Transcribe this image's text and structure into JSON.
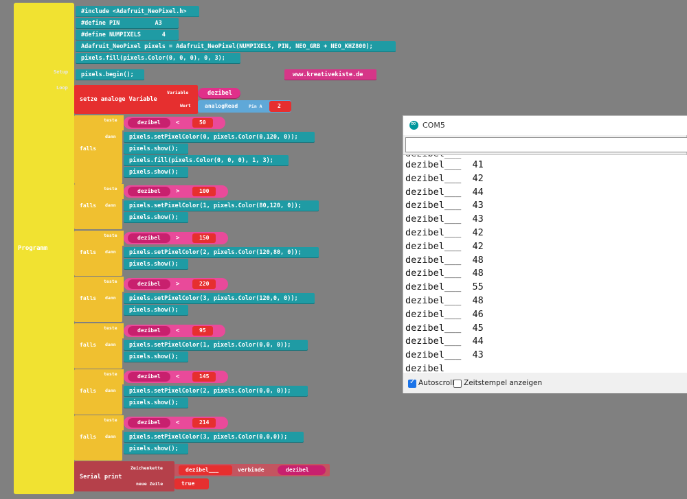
{
  "editor": {
    "code": {
      "include": "#include <Adafruit_NeoPixel.h>",
      "define_pin": "#define PIN          A3",
      "define_num": "#define NUMPIXELS      4",
      "constructor": "Adafruit_NeoPixel pixels = Adafruit_NeoPixel(NUMPIXELS, PIN, NEO_GRB + NEO_KHZ800);",
      "fill_init": "pixels.fill(pixels.Color(0, 0, 0), 0, 3);",
      "begin": "pixels.begin();",
      "url": "www.kreativekiste.de"
    },
    "labels": {
      "programm": "Programm",
      "setup": "Setup",
      "loop": "Loop",
      "setze": "setze analoge Variable",
      "variable": "Variable",
      "wert": "Wert",
      "falls": "falls",
      "teste": "teste",
      "dann": "dann",
      "serial_print": "Serial print",
      "zeichenkette": "Zeichenkette",
      "neue_zeile": "neue Zeile",
      "verbinde": "verbinde"
    },
    "setvar": {
      "var_name": "dezibel",
      "read": "analogRead",
      "pin_label": "Pin A",
      "pin_value": "2"
    },
    "conditions": [
      {
        "var": "dezibel",
        "op": "<",
        "value": "50",
        "actions": [
          "pixels.setPixelColor(0, pixels.Color(0,120, 0));",
          "pixels.show();",
          "pixels.fill(pixels.Color(0, 0, 0), 1, 3);",
          "pixels.show();"
        ]
      },
      {
        "var": "dezibel",
        "op": ">",
        "value": "100",
        "actions": [
          "pixels.setPixelColor(1, pixels.Color(80,120, 0));",
          "pixels.show();"
        ]
      },
      {
        "var": "dezibel",
        "op": ">",
        "value": "150",
        "actions": [
          "pixels.setPixelColor(2, pixels.Color(120,80, 0));",
          "pixels.show();"
        ]
      },
      {
        "var": "dezibel",
        "op": ">",
        "value": "220",
        "actions": [
          "pixels.setPixelColor(3, pixels.Color(120,0, 0));",
          "pixels.show();"
        ]
      },
      {
        "var": "dezibel",
        "op": "<",
        "value": "95",
        "actions": [
          "pixels.setPixelColor(1, pixels.Color(0,0, 0));",
          "pixels.show();"
        ]
      },
      {
        "var": "dezibel",
        "op": "<",
        "value": "145",
        "actions": [
          "pixels.setPixelColor(2, pixels.Color(0,0, 0));",
          "pixels.show();"
        ]
      },
      {
        "var": "dezibel",
        "op": "<",
        "value": "214",
        "actions": [
          "pixels.setPixelColor(3, pixels.Color(0,0,0));",
          "pixels.show();"
        ]
      }
    ],
    "serial": {
      "string": "dezibel___",
      "var": "dezibel",
      "newline": "true"
    }
  },
  "serial_monitor": {
    "title": "COM5",
    "lines": [
      "dezibel___  41",
      "dezibel___  42",
      "dezibel___  44",
      "dezibel___  43",
      "dezibel___  43",
      "dezibel___  42",
      "dezibel___  42",
      "dezibel___  48",
      "dezibel___  48",
      "dezibel___  55",
      "dezibel___  48",
      "dezibel___  46",
      "dezibel___  45",
      "dezibel___  44",
      "dezibel___  43",
      "dezibel___"
    ],
    "autoscroll": "Autoscroll",
    "timestamp": "Zeitstempel anzeigen"
  }
}
